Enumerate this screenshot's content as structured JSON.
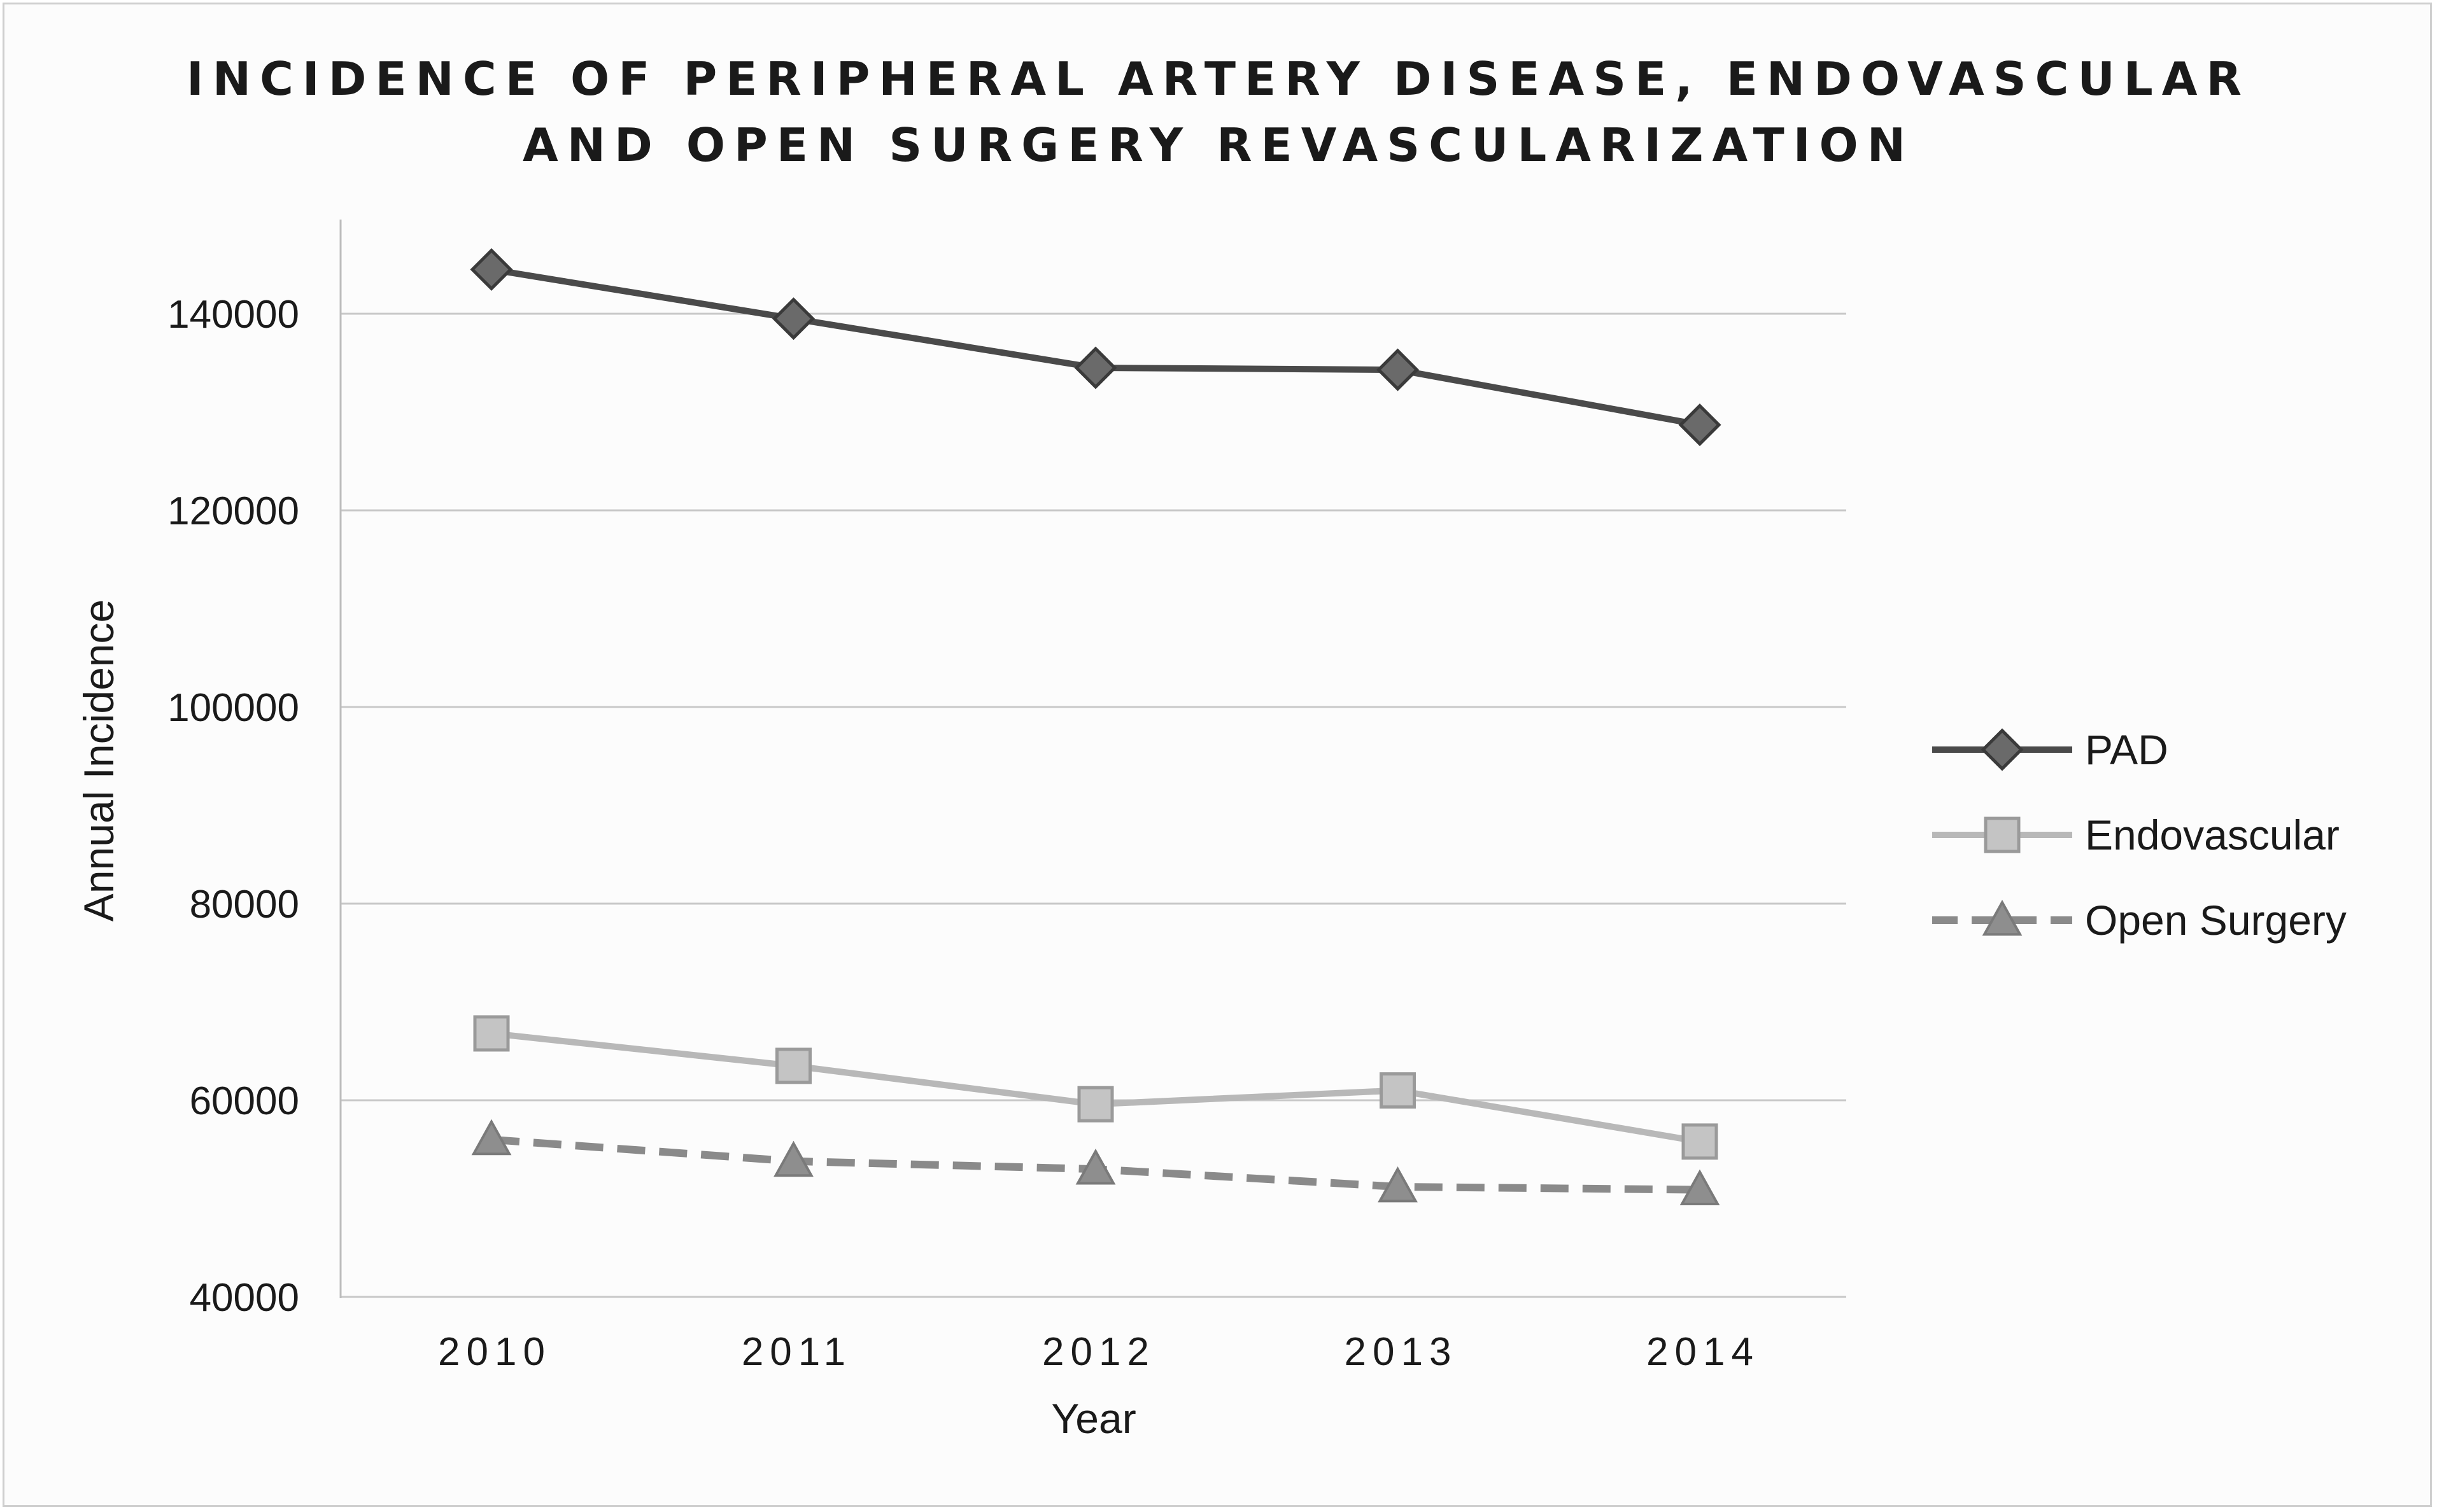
{
  "chart_data": {
    "type": "line",
    "title_lines": [
      "INCIDENCE OF PERIPHERAL ARTERY DISEASE, ENDOVASCULAR",
      "AND OPEN SURGERY REVASCULARIZATION"
    ],
    "xlabel": "Year",
    "ylabel": "Annual Incidence",
    "categories": [
      "2010",
      "2011",
      "2012",
      "2013",
      "2014"
    ],
    "ylim": [
      40000,
      145000
    ],
    "yticks": [
      40000,
      60000,
      80000,
      100000,
      120000,
      140000
    ],
    "ytick_labels": [
      "40000",
      "60000",
      "80000",
      "100000",
      "120000",
      "140000"
    ],
    "grid": true,
    "legend_position": "right",
    "series": [
      {
        "name": "PAD",
        "values": [
          144500,
          139500,
          134500,
          134300,
          128700
        ],
        "color": "#4a4a4a",
        "marker": "diamond",
        "line_style": "solid"
      },
      {
        "name": "Endovascular",
        "values": [
          66800,
          63500,
          59600,
          61000,
          55800
        ],
        "color": "#b8b8b8",
        "marker": "square",
        "line_style": "solid"
      },
      {
        "name": "Open Surgery",
        "values": [
          56000,
          53800,
          53000,
          51200,
          50900
        ],
        "color": "#8a8a8a",
        "marker": "triangle",
        "line_style": "dashed"
      }
    ]
  }
}
